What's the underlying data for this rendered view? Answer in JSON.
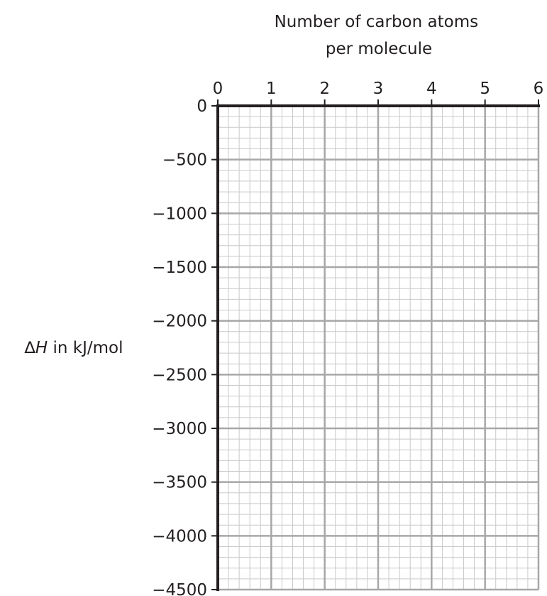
{
  "chart_data": {
    "type": "line",
    "title": "",
    "xlabel_lines": [
      "Number of carbon atoms",
      "per molecule"
    ],
    "ylabel_symbol": "∆",
    "ylabel_var": "H",
    "ylabel_rest": " in kJ/mol",
    "x_axis_position": "top",
    "xlim": [
      0,
      6
    ],
    "ylim": [
      -4500,
      0
    ],
    "x_ticks": [
      0,
      1,
      2,
      3,
      4,
      5,
      6
    ],
    "y_ticks": [
      0,
      -500,
      -1000,
      -1500,
      -2000,
      -2500,
      -3000,
      -3500,
      -4000,
      -4500
    ],
    "x_tick_labels": [
      "0",
      "1",
      "2",
      "3",
      "4",
      "5",
      "6"
    ],
    "y_tick_labels": [
      "0",
      "−500",
      "−1000",
      "−1500",
      "−2000",
      "−2500",
      "−3000",
      "−3500",
      "−4000",
      "−4500"
    ],
    "grid": true,
    "minor_per_major_x": 5,
    "minor_per_major_y": 5,
    "colors": {
      "axis": "#231f20",
      "minor_grid": "#c9c9c9",
      "major_grid": "#a7a7a7",
      "text": "#231f20"
    },
    "series": []
  }
}
